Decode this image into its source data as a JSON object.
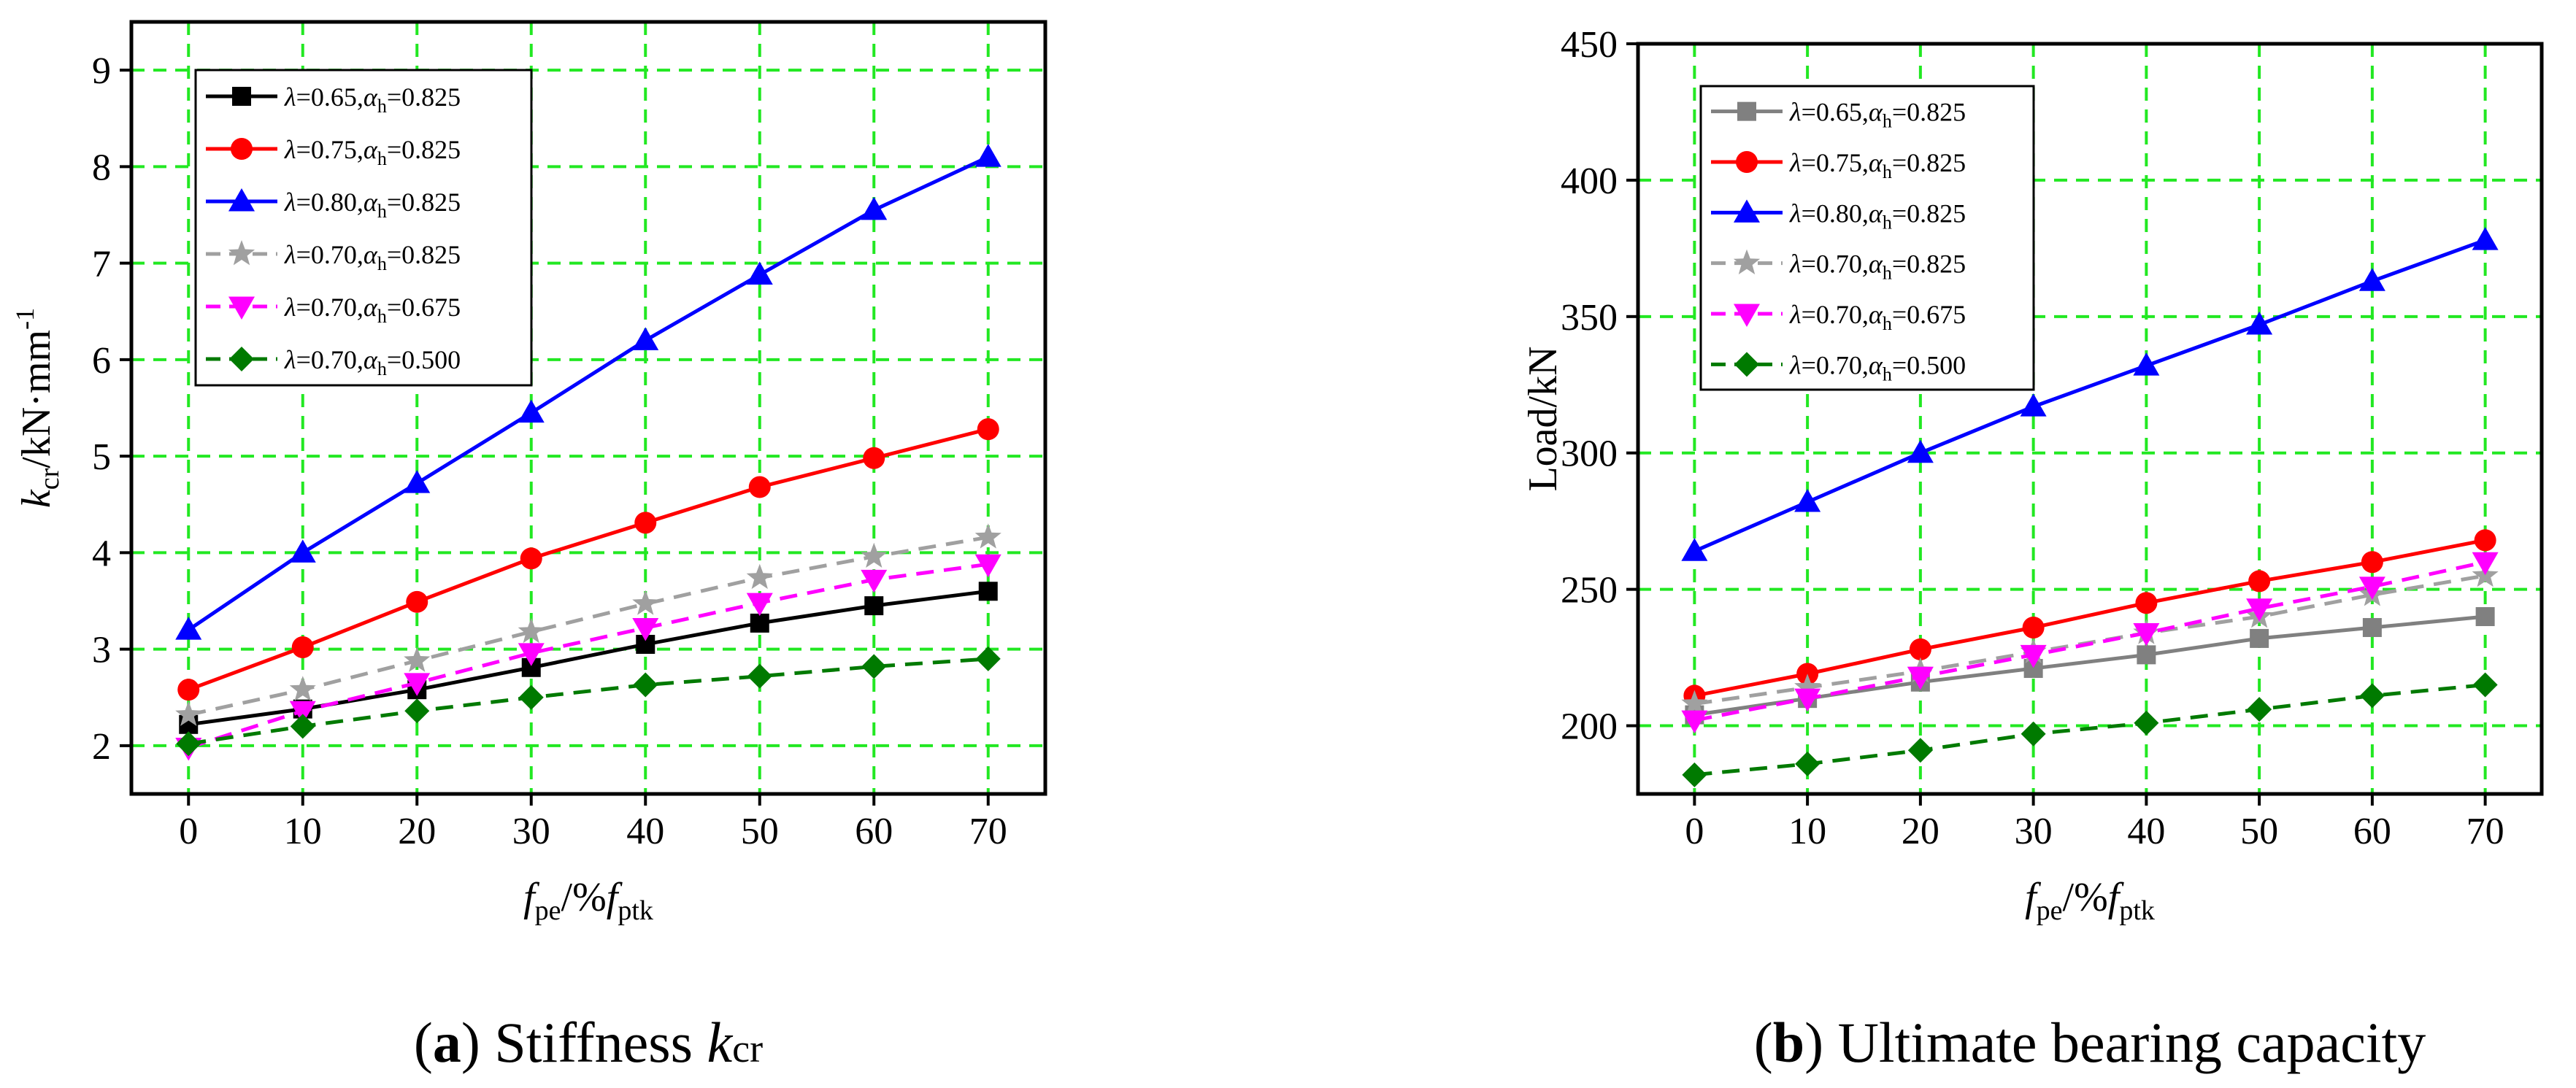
{
  "chart_data": [
    {
      "type": "line",
      "title": "",
      "panel_label": "a",
      "caption_text": "Stiffness",
      "caption_symbol": "k",
      "caption_symbol_sub": "cr",
      "xlabel": {
        "main": "f",
        "sub1": "pe",
        "mid": "/%",
        "main2": "f",
        "sub2": "ptk"
      },
      "ylabel": {
        "main": "k",
        "sub": "cr",
        "rest": "/kN·mm",
        "sup": "-1"
      },
      "x": [
        0,
        10,
        20,
        30,
        40,
        50,
        60,
        70
      ],
      "x_ticks": [
        "0",
        "10",
        "20",
        "30",
        "40",
        "50",
        "60",
        "70"
      ],
      "xlim": [
        -5,
        75
      ],
      "ylim": [
        1.5,
        9.5
      ],
      "y_ticks": [
        "2",
        "3",
        "4",
        "5",
        "6",
        "7",
        "8",
        "9"
      ],
      "y_tick_values": [
        2,
        3,
        4,
        5,
        6,
        7,
        8,
        9
      ],
      "grid": true,
      "legend_position": "top-left",
      "series": [
        {
          "lambda": "0.65",
          "alpha": "0.825",
          "color": "#000000",
          "dash": "solid",
          "marker": "square",
          "values": [
            2.22,
            2.38,
            2.58,
            2.81,
            3.05,
            3.27,
            3.45,
            3.6
          ]
        },
        {
          "lambda": "0.75",
          "alpha": "0.825",
          "color": "#ff0000",
          "dash": "solid",
          "marker": "circle",
          "values": [
            2.58,
            3.02,
            3.49,
            3.94,
            4.31,
            4.68,
            4.98,
            5.28
          ]
        },
        {
          "lambda": "0.80",
          "alpha": "0.825",
          "color": "#0000ff",
          "dash": "solid",
          "marker": "triangle-up",
          "values": [
            3.2,
            4.0,
            4.72,
            5.45,
            6.2,
            6.88,
            7.55,
            8.1
          ]
        },
        {
          "lambda": "0.70",
          "alpha": "0.825",
          "color": "#a0a0a0",
          "dash": "dashed",
          "marker": "star",
          "values": [
            2.32,
            2.58,
            2.88,
            3.18,
            3.47,
            3.74,
            3.96,
            4.16
          ]
        },
        {
          "lambda": "0.70",
          "alpha": "0.675",
          "color": "#ff00ff",
          "dash": "dashed",
          "marker": "triangle-down",
          "values": [
            1.98,
            2.36,
            2.65,
            2.96,
            3.22,
            3.48,
            3.72,
            3.88
          ]
        },
        {
          "lambda": "0.70",
          "alpha": "0.500",
          "color": "#007a00",
          "dash": "dashed",
          "marker": "diamond",
          "values": [
            2.02,
            2.2,
            2.36,
            2.5,
            2.63,
            2.72,
            2.82,
            2.9
          ]
        }
      ]
    },
    {
      "type": "line",
      "title": "",
      "panel_label": "b",
      "caption_text": "Ultimate bearing capacity",
      "caption_symbol": "",
      "caption_symbol_sub": "",
      "xlabel": {
        "main": "f",
        "sub1": "pe",
        "mid": "/%",
        "main2": "f",
        "sub2": "ptk"
      },
      "ylabel_text": "Load/kN",
      "x": [
        0,
        10,
        20,
        30,
        40,
        50,
        60,
        70
      ],
      "x_ticks": [
        "0",
        "10",
        "20",
        "30",
        "40",
        "50",
        "60",
        "70"
      ],
      "xlim": [
        -5,
        75
      ],
      "ylim": [
        175,
        450
      ],
      "y_ticks": [
        "200",
        "250",
        "300",
        "350",
        "400",
        "450"
      ],
      "y_tick_values": [
        200,
        250,
        300,
        350,
        400,
        450
      ],
      "grid": true,
      "legend_position": "top-left",
      "series": [
        {
          "lambda": "0.65",
          "alpha": "0.825",
          "color": "#808080",
          "dash": "solid",
          "marker": "square",
          "values": [
            204,
            210,
            216,
            221,
            226,
            232,
            236,
            240
          ]
        },
        {
          "lambda": "0.75",
          "alpha": "0.825",
          "color": "#ff0000",
          "dash": "solid",
          "marker": "circle",
          "values": [
            211,
            219,
            228,
            236,
            245,
            253,
            260,
            268
          ]
        },
        {
          "lambda": "0.80",
          "alpha": "0.825",
          "color": "#0000ff",
          "dash": "solid",
          "marker": "triangle-up",
          "values": [
            264,
            282,
            300,
            317,
            332,
            347,
            363,
            378
          ]
        },
        {
          "lambda": "0.70",
          "alpha": "0.825",
          "color": "#a0a0a0",
          "dash": "dashed",
          "marker": "star",
          "values": [
            208,
            214,
            220,
            227,
            234,
            240,
            248,
            255
          ]
        },
        {
          "lambda": "0.70",
          "alpha": "0.675",
          "color": "#ff00ff",
          "dash": "dashed",
          "marker": "triangle-down",
          "values": [
            202,
            210,
            218,
            226,
            234,
            243,
            251,
            260
          ]
        },
        {
          "lambda": "0.70",
          "alpha": "0.500",
          "color": "#007a00",
          "dash": "dashed",
          "marker": "diamond",
          "values": [
            182,
            186,
            191,
            197,
            201,
            206,
            211,
            215
          ]
        }
      ]
    }
  ]
}
